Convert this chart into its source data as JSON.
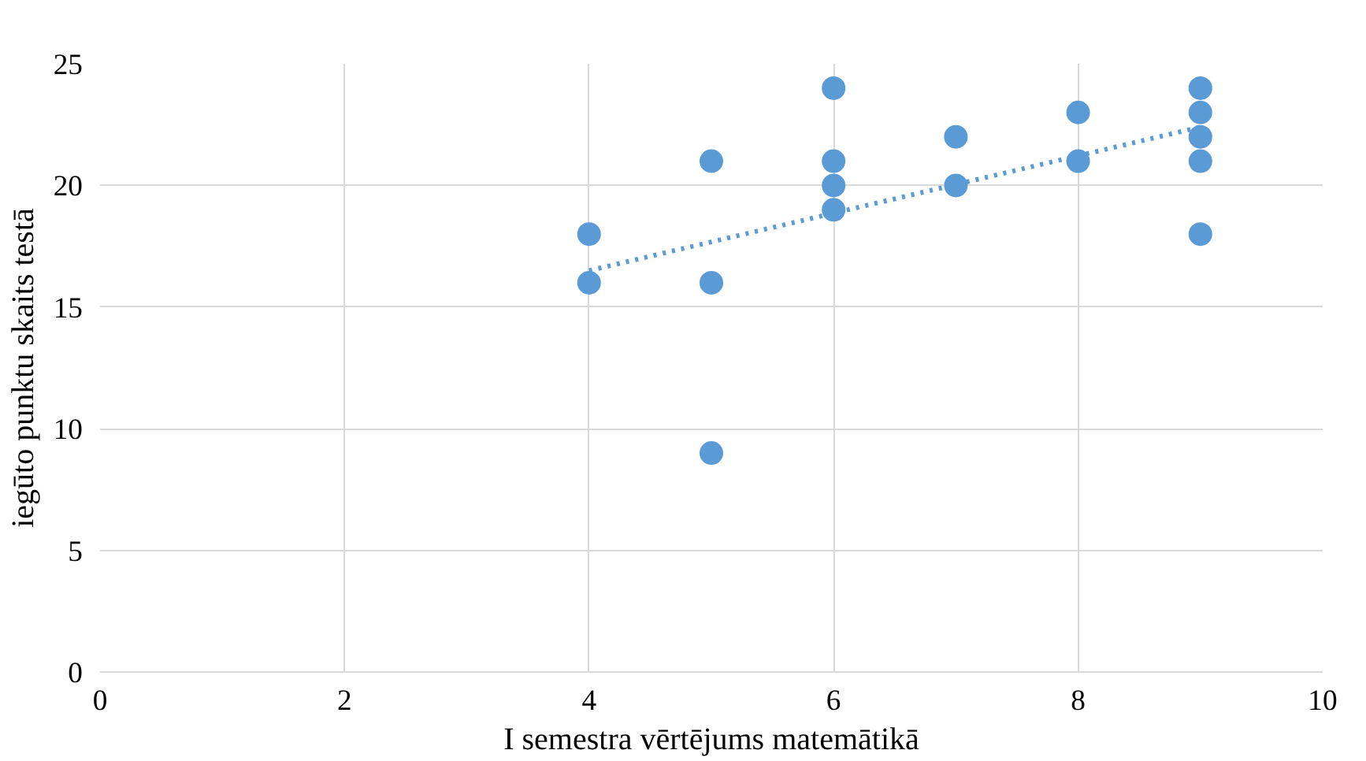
{
  "chart_data": {
    "type": "scatter",
    "xlabel": "I semestra vērtējums matemātikā",
    "ylabel": "iegūto punktu skaits testā",
    "series": [
      {
        "color": "#5b9bd5",
        "x": [
          4,
          4,
          5,
          5,
          5,
          6,
          6,
          6,
          6,
          7,
          7,
          8,
          8,
          9,
          9,
          9,
          9,
          9
        ],
        "values": [
          18,
          16,
          21,
          16,
          9,
          24,
          21,
          20,
          19,
          22,
          20,
          23,
          21,
          24,
          23,
          22,
          21,
          18
        ]
      },
      {
        "type": "line",
        "color": "#5b9bd5",
        "line_style": "dotted",
        "marker": "none",
        "x": [
          4,
          9
        ],
        "values": [
          16.5,
          22.4
        ]
      }
    ],
    "marker": "circle",
    "xlim": [
      0,
      10
    ],
    "ylim": [
      0,
      25
    ],
    "xticks": [
      0,
      2,
      4,
      6,
      8,
      10
    ],
    "yticks": [
      0,
      5,
      10,
      15,
      20,
      25
    ],
    "grid": true
  }
}
